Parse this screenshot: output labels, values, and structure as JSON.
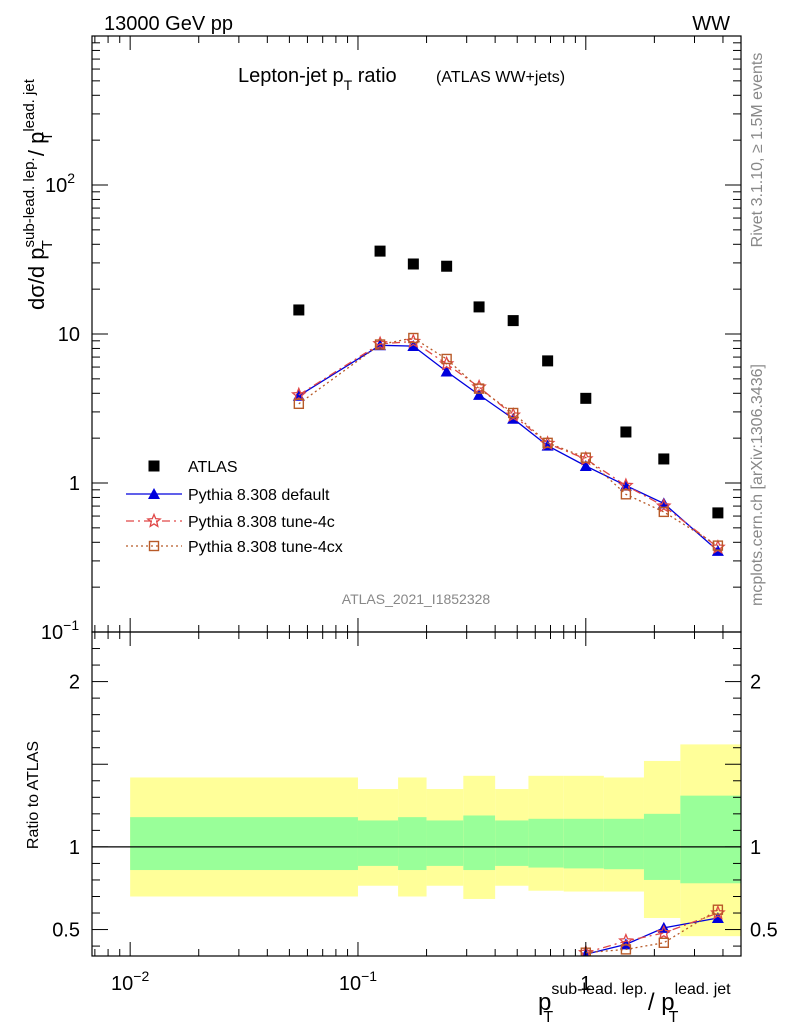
{
  "header": {
    "left": "13000 GeV pp",
    "right": "WW"
  },
  "side_labels": {
    "top": "Rivet 3.1.10, ≥ 1.5M events",
    "bottom": "mcplots.cern.ch [arXiv:1306.3436]"
  },
  "chart_data": [
    {
      "type": "scatter",
      "title_main": "Lepton-jet p",
      "title_sub": "T",
      "title_tail": " ratio",
      "title_note": "(ATLAS WW+jets)",
      "ylabel": "dσ/d p_T^{sub-lead. lep.} / p_T^{lead. jet}",
      "ylabel_parts": {
        "a": "dσ/d p",
        "sub": "T",
        "sup": "sub-lead. lep.",
        "b": " / p",
        "sub2": "T",
        "sup2": "lead. jet"
      },
      "xscale": "log",
      "yscale": "log",
      "xlim": [
        0.0068,
        4.8
      ],
      "ylim": [
        0.1,
        1000
      ],
      "yticks": [
        {
          "value": 0.1,
          "base": "10",
          "exp": "−1"
        },
        {
          "value": 1,
          "base": "1",
          "exp": ""
        },
        {
          "value": 10,
          "base": "10",
          "exp": ""
        },
        {
          "value": 100,
          "base": "10",
          "exp": "2"
        }
      ],
      "watermark": "ATLAS_2021_I1852328",
      "legend_position": "lower-left",
      "legend": [
        {
          "label": "ATLAS",
          "marker": "square",
          "color": "#000000"
        },
        {
          "label": "Pythia 8.308 default",
          "marker": "triangle",
          "color": "#0000dd"
        },
        {
          "label": "Pythia 8.308 tune-4c",
          "marker": "star",
          "color": "#e04848"
        },
        {
          "label": "Pythia 8.308 tune-4cx",
          "marker": "open-square",
          "color": "#b85a28"
        }
      ],
      "series": [
        {
          "name": "ATLAS",
          "x": [
            0.055,
            0.125,
            0.175,
            0.245,
            0.34,
            0.48,
            0.68,
            1.0,
            1.5,
            2.2,
            3.8
          ],
          "y": [
            14.5,
            36,
            29.5,
            28.5,
            15.2,
            12.3,
            6.6,
            3.7,
            2.2,
            1.45,
            0.63
          ]
        },
        {
          "name": "Pythia 8.308 default",
          "x": [
            0.055,
            0.125,
            0.175,
            0.245,
            0.34,
            0.48,
            0.68,
            1.0,
            1.5,
            2.2,
            3.8
          ],
          "y": [
            3.85,
            8.4,
            8.3,
            5.6,
            3.9,
            2.7,
            1.78,
            1.3,
            0.96,
            0.73,
            0.35
          ]
        },
        {
          "name": "Pythia 8.308 tune-4c",
          "x": [
            0.055,
            0.125,
            0.175,
            0.245,
            0.34,
            0.48,
            0.68,
            1.0,
            1.5,
            2.2,
            3.8
          ],
          "y": [
            3.9,
            8.6,
            8.9,
            6.3,
            4.4,
            2.85,
            1.84,
            1.45,
            0.96,
            0.7,
            0.37
          ]
        },
        {
          "name": "Pythia 8.308 tune-4cx",
          "x": [
            0.055,
            0.125,
            0.175,
            0.245,
            0.34,
            0.48,
            0.68,
            1.0,
            1.5,
            2.2,
            3.8
          ],
          "y": [
            3.4,
            8.5,
            9.4,
            6.8,
            4.3,
            2.95,
            1.86,
            1.48,
            0.84,
            0.64,
            0.38
          ]
        }
      ]
    },
    {
      "type": "scatter",
      "ylabel": "Ratio to ATLAS",
      "xlabel": "p_T^{sub-lead. lep.} / p_T^{lead. jet}",
      "xlabel_parts": {
        "a": "p",
        "sub": "T",
        "sup": "sub-lead. lep.",
        "b": " / p",
        "sub2": "T",
        "sup2": "lead. jet"
      },
      "xscale": "log",
      "xlim": [
        0.0068,
        4.8
      ],
      "ylim": [
        0.34,
        2.3
      ],
      "xticks": [
        {
          "value": 0.01,
          "base": "10",
          "exp": "−2"
        },
        {
          "value": 0.1,
          "base": "10",
          "exp": "−1"
        },
        {
          "value": 1,
          "base": "1",
          "exp": ""
        }
      ],
      "yticks": [
        {
          "value": 0.5,
          "label": "0.5"
        },
        {
          "value": 1,
          "label": "1"
        },
        {
          "value": 2,
          "label": "2"
        }
      ],
      "bands": [
        {
          "x": [
            0.01,
            0.1
          ],
          "inner": [
            0.86,
            1.18
          ],
          "outer": [
            0.7,
            1.42
          ]
        },
        {
          "x": [
            0.1,
            0.15
          ],
          "inner": [
            0.885,
            1.16
          ],
          "outer": [
            0.765,
            1.35
          ]
        },
        {
          "x": [
            0.15,
            0.2
          ],
          "inner": [
            0.86,
            1.18
          ],
          "outer": [
            0.7,
            1.42
          ]
        },
        {
          "x": [
            0.2,
            0.29
          ],
          "inner": [
            0.885,
            1.16
          ],
          "outer": [
            0.765,
            1.35
          ]
        },
        {
          "x": [
            0.29,
            0.4
          ],
          "inner": [
            0.86,
            1.19
          ],
          "outer": [
            0.685,
            1.43
          ]
        },
        {
          "x": [
            0.4,
            0.56
          ],
          "inner": [
            0.885,
            1.16
          ],
          "outer": [
            0.765,
            1.35
          ]
        },
        {
          "x": [
            0.56,
            0.8
          ],
          "inner": [
            0.875,
            1.17
          ],
          "outer": [
            0.735,
            1.43
          ]
        },
        {
          "x": [
            0.8,
            1.2
          ],
          "inner": [
            0.87,
            1.17
          ],
          "outer": [
            0.73,
            1.43
          ]
        },
        {
          "x": [
            1.2,
            1.8
          ],
          "inner": [
            0.865,
            1.17
          ],
          "outer": [
            0.73,
            1.42
          ]
        },
        {
          "x": [
            1.8,
            2.6
          ],
          "inner": [
            0.8,
            1.2
          ],
          "outer": [
            0.57,
            1.52
          ]
        },
        {
          "x": [
            2.6,
            4.8
          ],
          "inner": [
            0.78,
            1.31
          ],
          "outer": [
            0.46,
            1.62
          ]
        }
      ],
      "series": [
        {
          "name": "Pythia 8.308 default",
          "x": [
            1.0,
            1.5,
            2.2,
            3.8
          ],
          "y": [
            0.35,
            0.41,
            0.51,
            0.57
          ]
        },
        {
          "name": "Pythia 8.308 tune-4c",
          "x": [
            1.0,
            1.5,
            2.2,
            3.8
          ],
          "y": [
            0.36,
            0.43,
            0.48,
            0.6
          ]
        },
        {
          "name": "Pythia 8.308 tune-4cx",
          "x": [
            1.0,
            1.5,
            2.2,
            3.8
          ],
          "y": [
            0.36,
            0.38,
            0.42,
            0.62
          ]
        }
      ]
    }
  ]
}
